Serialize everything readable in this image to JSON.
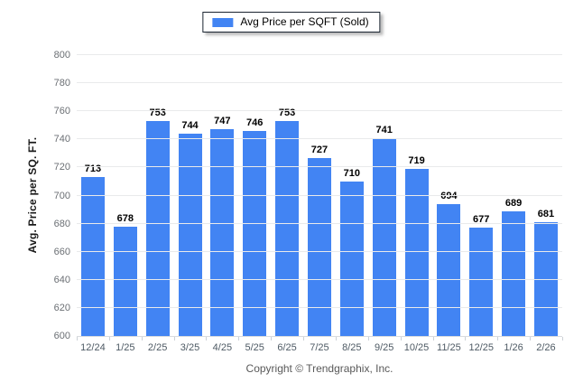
{
  "legend": {
    "label": "Avg Price per SQFT (Sold)"
  },
  "footer": {
    "copyright": "Copyright © Trendgraphix, Inc."
  },
  "colors": {
    "bar": "#4284f3",
    "gridline": "#e9eaeb",
    "axis_line": "#d9dcdf",
    "y_tick_label": "#6b6f74",
    "x_tick_label": "#4e5a64",
    "value_label": "#000000"
  },
  "chart_data": {
    "type": "bar",
    "title": "Avg Price per SQFT (Sold)",
    "categories": [
      "12/24",
      "1/25",
      "2/25",
      "3/25",
      "4/25",
      "5/25",
      "6/25",
      "7/25",
      "8/25",
      "9/25",
      "10/25",
      "11/25",
      "12/25",
      "1/26",
      "2/26"
    ],
    "values": [
      713,
      678,
      753,
      744,
      747,
      746,
      753,
      727,
      710,
      741,
      719,
      694,
      677,
      689,
      681
    ],
    "xlabel": "",
    "ylabel": "Avg. Price per SQ. FT.",
    "ylim": [
      600,
      800
    ],
    "ytick_step": 20,
    "grid": true,
    "legend_position": "top-center",
    "value_labels": true
  }
}
